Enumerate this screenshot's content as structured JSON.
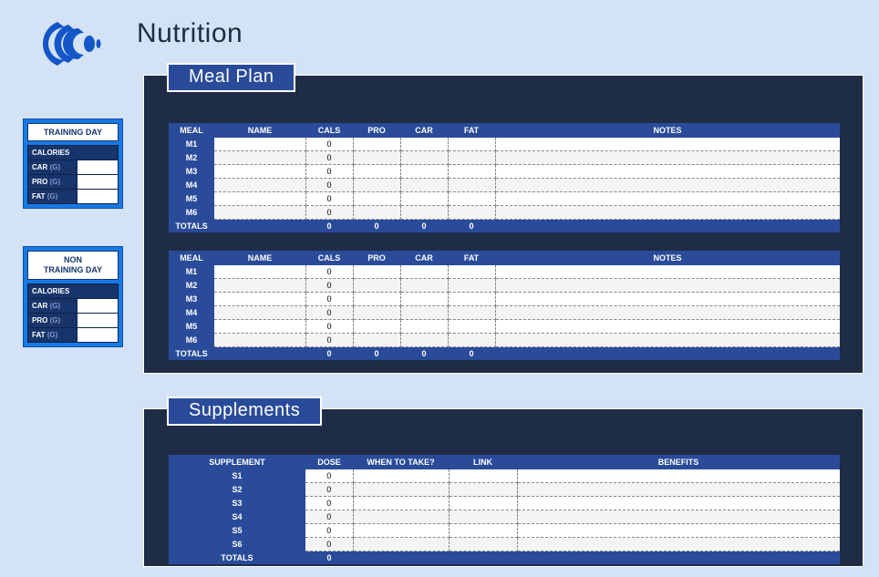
{
  "title": "Nutrition",
  "accent_color": "#294b9a",
  "panel_bg": "#1f2c45",
  "page_bg": "#d3e2f5",
  "side_bg": "#1779e6",
  "side_cards": {
    "training": {
      "title": "TRAINING DAY",
      "cal_label": "CALORIES",
      "macros": [
        {
          "name": "CAR",
          "unit": "(G)",
          "value": ""
        },
        {
          "name": "PRO",
          "unit": "(G)",
          "value": ""
        },
        {
          "name": "FAT",
          "unit": "(G)",
          "value": ""
        }
      ]
    },
    "nontraining": {
      "title_line1": "NON",
      "title_line2": "TRAINING DAY",
      "cal_label": "CALORIES",
      "macros": [
        {
          "name": "CAR",
          "unit": "(G)",
          "value": ""
        },
        {
          "name": "PRO",
          "unit": "(G)",
          "value": ""
        },
        {
          "name": "FAT",
          "unit": "(G)",
          "value": ""
        }
      ]
    }
  },
  "mealplan": {
    "tab": "Meal Plan",
    "headers": [
      "MEAL",
      "NAME",
      "CALS",
      "PRO",
      "CAR",
      "FAT",
      "NOTES"
    ],
    "totals_label": "TOTALS",
    "table1": {
      "rows": [
        {
          "id": "M1",
          "name": "",
          "cals": "0",
          "pro": "",
          "car": "",
          "fat": "",
          "notes": ""
        },
        {
          "id": "M2",
          "name": "",
          "cals": "0",
          "pro": "",
          "car": "",
          "fat": "",
          "notes": ""
        },
        {
          "id": "M3",
          "name": "",
          "cals": "0",
          "pro": "",
          "car": "",
          "fat": "",
          "notes": ""
        },
        {
          "id": "M4",
          "name": "",
          "cals": "0",
          "pro": "",
          "car": "",
          "fat": "",
          "notes": ""
        },
        {
          "id": "M5",
          "name": "",
          "cals": "0",
          "pro": "",
          "car": "",
          "fat": "",
          "notes": ""
        },
        {
          "id": "M6",
          "name": "",
          "cals": "0",
          "pro": "",
          "car": "",
          "fat": "",
          "notes": ""
        }
      ],
      "totals": {
        "cals": "0",
        "pro": "0",
        "car": "0",
        "fat": "0"
      }
    },
    "table2": {
      "rows": [
        {
          "id": "M1",
          "name": "",
          "cals": "0",
          "pro": "",
          "car": "",
          "fat": "",
          "notes": ""
        },
        {
          "id": "M2",
          "name": "",
          "cals": "0",
          "pro": "",
          "car": "",
          "fat": "",
          "notes": ""
        },
        {
          "id": "M3",
          "name": "",
          "cals": "0",
          "pro": "",
          "car": "",
          "fat": "",
          "notes": ""
        },
        {
          "id": "M4",
          "name": "",
          "cals": "0",
          "pro": "",
          "car": "",
          "fat": "",
          "notes": ""
        },
        {
          "id": "M5",
          "name": "",
          "cals": "0",
          "pro": "",
          "car": "",
          "fat": "",
          "notes": ""
        },
        {
          "id": "M6",
          "name": "",
          "cals": "0",
          "pro": "",
          "car": "",
          "fat": "",
          "notes": ""
        }
      ],
      "totals": {
        "cals": "0",
        "pro": "0",
        "car": "0",
        "fat": "0"
      }
    }
  },
  "supplements": {
    "tab": "Supplements",
    "headers": [
      "SUPPLEMENT",
      "DOSE",
      "WHEN TO TAKE?",
      "LINK",
      "BENEFITS"
    ],
    "totals_label": "TOTALS",
    "rows": [
      {
        "id": "S1",
        "dose": "0",
        "when": "",
        "link": "",
        "benefits": ""
      },
      {
        "id": "S2",
        "dose": "0",
        "when": "",
        "link": "",
        "benefits": ""
      },
      {
        "id": "S3",
        "dose": "0",
        "when": "",
        "link": "",
        "benefits": ""
      },
      {
        "id": "S4",
        "dose": "0",
        "when": "",
        "link": "",
        "benefits": ""
      },
      {
        "id": "S5",
        "dose": "0",
        "when": "",
        "link": "",
        "benefits": ""
      },
      {
        "id": "S6",
        "dose": "0",
        "when": "",
        "link": "",
        "benefits": ""
      }
    ],
    "totals": {
      "dose": "0"
    }
  }
}
